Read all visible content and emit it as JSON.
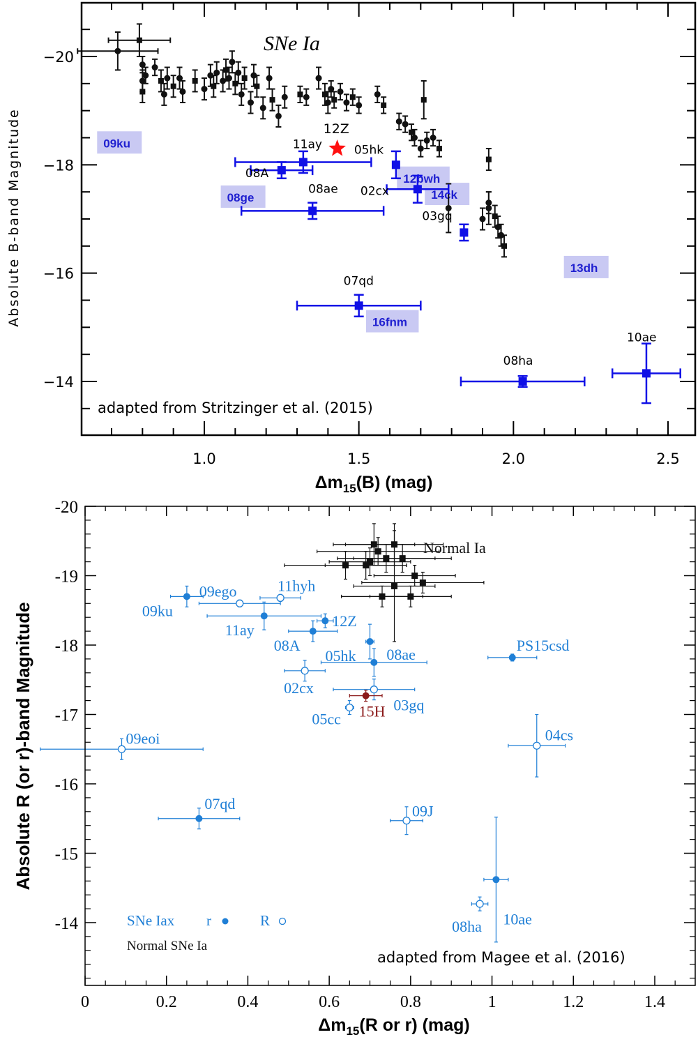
{
  "colors": {
    "normal": "#111111",
    "iax_top": "#1010e6",
    "iax_bottom": "#1f7fd6",
    "sn15h": "#8b1a1a",
    "star": "#ff1010",
    "highlight_box": "#c9c9f3",
    "highlight_text": "#2020d0"
  },
  "chart_data": [
    {
      "type": "scatter",
      "title": "",
      "annotation_class": "SNe Ia",
      "credit": "adapted from Stritzinger et al. (2015)",
      "xlabel": "Δm15(B)  (mag)",
      "ylabel": "Absolute B-band Magnitude",
      "xlim": [
        0.6,
        2.6
      ],
      "ylim": [
        -12.9,
        -20.9
      ],
      "y_inverted": true,
      "x_ticks": [
        1.0,
        1.5,
        2.0,
        2.5
      ],
      "x_tick_labels": [
        "1.0",
        "1.5",
        "2.0",
        "2.5"
      ],
      "y_ticks": [
        -20,
        -18,
        -16,
        -14
      ],
      "y_tick_labels": [
        "-20",
        "-18",
        "-16",
        "-14"
      ],
      "series": [
        {
          "name": "Normal SNe Ia",
          "marker": "circle/square",
          "points": [
            {
              "x": 0.72,
              "y": -20.1,
              "ex": 0.13,
              "ey": 0.35
            },
            {
              "x": 0.79,
              "y": -20.3,
              "ex": 0.1,
              "ey": 0.3
            },
            {
              "x": 0.8,
              "y": -19.85,
              "ex": 0,
              "ey": 0.15
            },
            {
              "x": 0.8,
              "y": -19.55,
              "ex": 0,
              "ey": 0.2
            },
            {
              "x": 0.8,
              "y": -19.35,
              "ex": 0,
              "ey": 0.2
            },
            {
              "x": 0.81,
              "y": -19.65,
              "ex": 0,
              "ey": 0.15
            },
            {
              "x": 0.84,
              "y": -19.8,
              "ex": 0,
              "ey": 0.15
            },
            {
              "x": 0.86,
              "y": -19.55,
              "ex": 0,
              "ey": 0.2
            },
            {
              "x": 0.87,
              "y": -19.3,
              "ex": 0,
              "ey": 0.2
            },
            {
              "x": 0.88,
              "y": -19.6,
              "ex": 0,
              "ey": 0.2
            },
            {
              "x": 0.9,
              "y": -19.45,
              "ex": 0,
              "ey": 0.2
            },
            {
              "x": 0.92,
              "y": -19.6,
              "ex": 0,
              "ey": 0.2
            },
            {
              "x": 0.93,
              "y": -19.35,
              "ex": 0,
              "ey": 0.2
            },
            {
              "x": 0.97,
              "y": -19.55,
              "ex": 0,
              "ey": 0.2
            },
            {
              "x": 1.0,
              "y": -19.4,
              "ex": 0,
              "ey": 0.2
            },
            {
              "x": 1.02,
              "y": -19.65,
              "ex": 0,
              "ey": 0.2
            },
            {
              "x": 1.03,
              "y": -19.45,
              "ex": 0,
              "ey": 0.2
            },
            {
              "x": 1.04,
              "y": -19.7,
              "ex": 0,
              "ey": 0.2
            },
            {
              "x": 1.06,
              "y": -19.55,
              "ex": 0,
              "ey": 0.2
            },
            {
              "x": 1.07,
              "y": -19.75,
              "ex": 0,
              "ey": 0.2
            },
            {
              "x": 1.08,
              "y": -19.6,
              "ex": 0,
              "ey": 0.2
            },
            {
              "x": 1.09,
              "y": -19.9,
              "ex": 0,
              "ey": 0.2
            },
            {
              "x": 1.1,
              "y": -19.5,
              "ex": 0,
              "ey": 0.2
            },
            {
              "x": 1.11,
              "y": -19.7,
              "ex": 0,
              "ey": 0.2
            },
            {
              "x": 1.12,
              "y": -19.3,
              "ex": 0,
              "ey": 0.2
            },
            {
              "x": 1.13,
              "y": -19.6,
              "ex": 0,
              "ey": 0.2
            },
            {
              "x": 1.15,
              "y": -19.15,
              "ex": 0,
              "ey": 0.2
            },
            {
              "x": 1.16,
              "y": -19.65,
              "ex": 0,
              "ey": 0.2
            },
            {
              "x": 1.17,
              "y": -19.45,
              "ex": 0,
              "ey": 0.2
            },
            {
              "x": 1.19,
              "y": -19.05,
              "ex": 0,
              "ey": 0.2
            },
            {
              "x": 1.21,
              "y": -19.6,
              "ex": 0,
              "ey": 0.2
            },
            {
              "x": 1.22,
              "y": -19.2,
              "ex": 0,
              "ey": 0.2
            },
            {
              "x": 1.24,
              "y": -18.9,
              "ex": 0,
              "ey": 0.2
            },
            {
              "x": 1.26,
              "y": -19.25,
              "ex": 0,
              "ey": 0.2
            },
            {
              "x": 1.31,
              "y": -19.3,
              "ex": 0,
              "ey": 0.15
            },
            {
              "x": 1.33,
              "y": -19.25,
              "ex": 0,
              "ey": 0.15
            },
            {
              "x": 1.37,
              "y": -19.6,
              "ex": 0,
              "ey": 0.2
            },
            {
              "x": 1.39,
              "y": -19.3,
              "ex": 0,
              "ey": 0.2
            },
            {
              "x": 1.4,
              "y": -19.15,
              "ex": 0,
              "ey": 0.2
            },
            {
              "x": 1.41,
              "y": -19.4,
              "ex": 0,
              "ey": 0.15
            },
            {
              "x": 1.42,
              "y": -19.2,
              "ex": 0,
              "ey": 0.15
            },
            {
              "x": 1.44,
              "y": -19.35,
              "ex": 0,
              "ey": 0.15
            },
            {
              "x": 1.46,
              "y": -19.15,
              "ex": 0,
              "ey": 0.15
            },
            {
              "x": 1.48,
              "y": -19.25,
              "ex": 0,
              "ey": 0.15
            },
            {
              "x": 1.5,
              "y": -19.1,
              "ex": 0,
              "ey": 0.15
            },
            {
              "x": 1.56,
              "y": -19.3,
              "ex": 0,
              "ey": 0.15
            },
            {
              "x": 1.58,
              "y": -19.1,
              "ex": 0,
              "ey": 0.15
            },
            {
              "x": 1.63,
              "y": -18.8,
              "ex": 0,
              "ey": 0.15
            },
            {
              "x": 1.65,
              "y": -18.75,
              "ex": 0,
              "ey": 0.15
            },
            {
              "x": 1.67,
              "y": -18.6,
              "ex": 0,
              "ey": 0.15
            },
            {
              "x": 1.68,
              "y": -18.5,
              "ex": 0,
              "ey": 0.15
            },
            {
              "x": 1.7,
              "y": -18.3,
              "ex": 0,
              "ey": 0.15
            },
            {
              "x": 1.71,
              "y": -19.2,
              "ex": 0,
              "ey": 0.35
            },
            {
              "x": 1.72,
              "y": -18.45,
              "ex": 0,
              "ey": 0.15
            },
            {
              "x": 1.74,
              "y": -18.5,
              "ex": 0,
              "ey": 0.15
            },
            {
              "x": 1.76,
              "y": -18.3,
              "ex": 0,
              "ey": 0.15
            },
            {
              "x": 1.79,
              "y": -17.2,
              "ex": 0,
              "ey": 0.45
            },
            {
              "x": 1.9,
              "y": -17.0,
              "ex": 0,
              "ey": 0.2
            },
            {
              "x": 1.92,
              "y": -18.1,
              "ex": 0,
              "ey": 0.2
            },
            {
              "x": 1.92,
              "y": -17.2,
              "ex": 0,
              "ey": 0.3
            },
            {
              "x": 1.92,
              "y": -17.3,
              "ex": 0,
              "ey": 0.2
            },
            {
              "x": 1.94,
              "y": -17.05,
              "ex": 0,
              "ey": 0.2
            },
            {
              "x": 1.95,
              "y": -16.85,
              "ex": 0,
              "ey": 0.2
            },
            {
              "x": 1.96,
              "y": -16.7,
              "ex": 0,
              "ey": 0.2
            },
            {
              "x": 1.97,
              "y": -16.5,
              "ex": 0,
              "ey": 0.2
            }
          ]
        },
        {
          "name": "SNe Iax",
          "marker": "square",
          "points": [
            {
              "label": "08A",
              "x": 1.25,
              "y": -17.9,
              "ex": 0.1,
              "ey": 0.15
            },
            {
              "label": "11ay",
              "x": 1.32,
              "y": -18.05,
              "ex": 0.22,
              "ey": 0.2
            },
            {
              "label": "08ae",
              "x": 1.35,
              "y": -17.15,
              "ex": 0.23,
              "ey": 0.15
            },
            {
              "label": "05hk",
              "x": 1.62,
              "y": -18.0,
              "ex": 0,
              "ey": 0.25
            },
            {
              "label": "02cx",
              "x": 1.69,
              "y": -17.55,
              "ex": 0.1,
              "ey": 0.25
            },
            {
              "label": "03gq",
              "x": 1.84,
              "y": -16.75,
              "ex": 0,
              "ey": 0.15
            },
            {
              "label": "07qd",
              "x": 1.5,
              "y": -15.4,
              "ex": 0.2,
              "ey": 0.2
            },
            {
              "label": "08ha",
              "x": 2.03,
              "y": -14.0,
              "ex": 0.2,
              "ey": 0.1
            },
            {
              "label": "10ae",
              "x": 2.43,
              "y": -14.15,
              "ex": 0.11,
              "ey": 0.55
            }
          ]
        },
        {
          "name": "12Z",
          "marker": "star",
          "points": [
            {
              "label": "12Z",
              "x": 1.43,
              "y": -18.3
            }
          ]
        }
      ],
      "highlighted_labels": [
        {
          "text": "09ku",
          "x": 0.66,
          "y": -18.4
        },
        {
          "text": "08ge",
          "x": 1.06,
          "y": -17.4
        },
        {
          "text": "12bwh",
          "x": 1.63,
          "y": -17.75
        },
        {
          "text": "14ck",
          "x": 1.72,
          "y": -17.45
        },
        {
          "text": "13dh",
          "x": 2.17,
          "y": -16.1
        },
        {
          "text": "16fnm",
          "x": 1.53,
          "y": -15.1
        }
      ]
    },
    {
      "type": "scatter",
      "title": "",
      "credit": "adapted from Magee et al. (2016)",
      "xlabel": "Δm15(R or r)  (mag)",
      "ylabel": "Absolute R (or r)-band Magnitude",
      "xlim": [
        0,
        1.5
      ],
      "ylim": [
        -13.1,
        -20.1
      ],
      "y_inverted": true,
      "x_ticks": [
        0,
        0.2,
        0.4,
        0.6,
        0.8,
        1.0,
        1.2,
        1.4
      ],
      "x_tick_labels": [
        "0",
        "0.2",
        "0.4",
        "0.6",
        "0.8",
        "1",
        "1.2",
        "1.4"
      ],
      "y_ticks": [
        -20,
        -19,
        -18,
        -17,
        -16,
        -15,
        -14
      ],
      "y_tick_labels": [
        "-20",
        "-19",
        "-18",
        "-17",
        "-16",
        "-15",
        "-14"
      ],
      "legend": {
        "iax_label": "SNe Iax",
        "r_label": "r",
        "R_label": "R",
        "normal_label": "Normal SNe Ia",
        "placement": "bottom-left"
      },
      "normal_label": "Normal Ia",
      "series": [
        {
          "name": "Normal SNe Ia",
          "marker": "square",
          "points": [
            {
              "x": 0.71,
              "y": -19.45,
              "ex": 0.1,
              "ey": 0.3
            },
            {
              "x": 0.76,
              "y": -19.45,
              "ex": 0.12,
              "ey": 0.3
            },
            {
              "x": 0.72,
              "y": -19.35,
              "ex": 0.15,
              "ey": 0.2
            },
            {
              "x": 0.74,
              "y": -19.25,
              "ex": 0.12,
              "ey": 0.2
            },
            {
              "x": 0.78,
              "y": -19.25,
              "ex": 0.12,
              "ey": 0.2
            },
            {
              "x": 0.7,
              "y": -19.2,
              "ex": 0.1,
              "ey": 0.2
            },
            {
              "x": 0.64,
              "y": -19.15,
              "ex": 0.15,
              "ey": 0.2
            },
            {
              "x": 0.69,
              "y": -19.15,
              "ex": 0.1,
              "ey": 0.2
            },
            {
              "x": 0.81,
              "y": -19.0,
              "ex": 0.1,
              "ey": 0.15
            },
            {
              "x": 0.83,
              "y": -18.9,
              "ex": 0.15,
              "ey": 0.15
            },
            {
              "x": 0.76,
              "y": -18.85,
              "ex": 0.1,
              "ey": 0.8
            },
            {
              "x": 0.8,
              "y": -18.7,
              "ex": 0.1,
              "ey": 0.15
            },
            {
              "x": 0.73,
              "y": -18.7,
              "ex": 0.1,
              "ey": 0.15
            }
          ]
        },
        {
          "name": "SNe Iax r",
          "marker": "filled-circle",
          "points": [
            {
              "label": "09ku",
              "x": 0.25,
              "y": -18.7,
              "ex": 0.04,
              "ey": 0.15
            },
            {
              "label": "11ay",
              "x": 0.44,
              "y": -18.42,
              "ex": 0.14,
              "ey": 0.2
            },
            {
              "label": "12Z",
              "x": 0.59,
              "y": -18.35,
              "ex": 0.02,
              "ey": 0.1
            },
            {
              "label": "08A",
              "x": 0.56,
              "y": -18.2,
              "ex": 0.06,
              "ey": 0.15
            },
            {
              "label": "05hk",
              "x": 0.7,
              "y": -18.05,
              "ex": 0.01,
              "ey": 0.25
            },
            {
              "label": "08ae",
              "x": 0.71,
              "y": -17.75,
              "ex": 0.13,
              "ey": 0.2
            },
            {
              "label": "PS15csd",
              "x": 1.05,
              "y": -17.82,
              "ex": 0.06,
              "ey": 0.05
            },
            {
              "label": "07qd",
              "x": 0.28,
              "y": -15.5,
              "ex": 0.1,
              "ey": 0.15
            },
            {
              "label": "10ae",
              "x": 1.01,
              "y": -14.62,
              "ex": 0.03,
              "ey": 0.9
            }
          ]
        },
        {
          "name": "SNe Iax R",
          "marker": "open-circle",
          "points": [
            {
              "label": "09ego",
              "x": 0.38,
              "y": -18.6,
              "ex": 0.1,
              "ey": 0.05
            },
            {
              "label": "11hyh",
              "x": 0.48,
              "y": -18.68,
              "ex": 0.05,
              "ey": 0.05
            },
            {
              "label": "02cx",
              "x": 0.54,
              "y": -17.63,
              "ex": 0.05,
              "ey": 0.15
            },
            {
              "label": "03gq",
              "x": 0.71,
              "y": -17.36,
              "ex": 0.1,
              "ey": 0.15
            },
            {
              "label": "05cc",
              "x": 0.65,
              "y": -17.1,
              "ex": 0.01,
              "ey": 0.1
            },
            {
              "label": "09eoi",
              "x": 0.09,
              "y": -16.5,
              "ex": 0.2,
              "ey": 0.15
            },
            {
              "label": "04cs",
              "x": 1.11,
              "y": -16.55,
              "ex": 0.07,
              "ey": 0.45
            },
            {
              "label": "09J",
              "x": 0.79,
              "y": -15.47,
              "ex": 0.04,
              "ey": 0.2
            },
            {
              "label": "08ha",
              "x": 0.97,
              "y": -14.27,
              "ex": 0.02,
              "ey": 0.1
            }
          ]
        },
        {
          "name": "15H",
          "marker": "filled-circle",
          "points": [
            {
              "label": "15H",
              "x": 0.69,
              "y": -17.27,
              "ex": 0.04,
              "ey": 0.08
            }
          ]
        }
      ]
    }
  ]
}
